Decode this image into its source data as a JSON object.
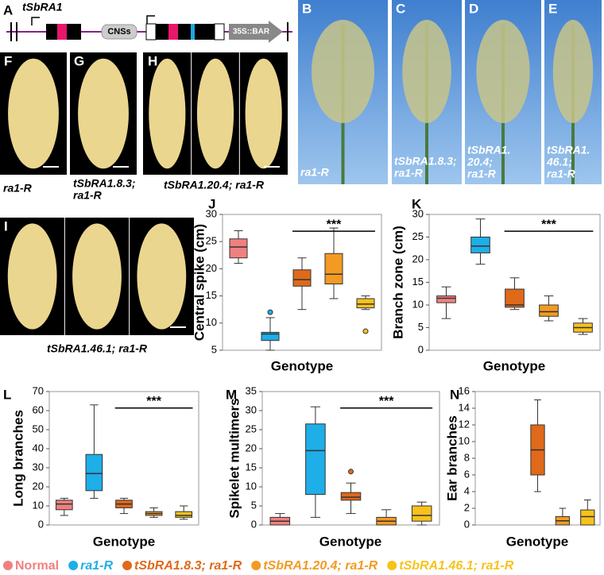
{
  "diagram": {
    "label": "A",
    "gene": "tSbRA1",
    "cns": "CNSs",
    "marker": "35S::BAR"
  },
  "photos": [
    {
      "label": "B",
      "caption": [
        "ra1-R"
      ]
    },
    {
      "label": "C",
      "caption": [
        "tSbRA1.8.3;",
        "ra1-R"
      ]
    },
    {
      "label": "D",
      "caption": [
        "tSbRA1.",
        "20.4;",
        "ra1-R"
      ]
    },
    {
      "label": "E",
      "caption": [
        "tSbRA1.",
        "46.1;",
        "ra1-R"
      ]
    },
    {
      "label": "F",
      "caption": [
        "ra1-R"
      ]
    },
    {
      "label": "G",
      "caption": [
        "tSbRA1.8.3;",
        "ra1-R"
      ]
    },
    {
      "label": "H",
      "caption": [
        "tSbRA1.20.4; ra1-R"
      ]
    },
    {
      "label": "I",
      "caption": [
        "tSbRA1.46.1; ra1-R"
      ]
    }
  ],
  "legend": [
    {
      "name": "Normal",
      "color": "#f08080"
    },
    {
      "name": "ra1-R",
      "color": "#1eaee8"
    },
    {
      "name": "tSbRA1.8.3; ra1-R",
      "color": "#e0691a"
    },
    {
      "name": "tSbRA1.20.4; ra1-R",
      "color": "#f39a22"
    },
    {
      "name": "tSbRA1.46.1; ra1-R",
      "color": "#f8c21c"
    }
  ],
  "chart_data": [
    {
      "type": "box",
      "label": "J",
      "y_label": "Central spike (cm)",
      "x_label": "Genotype",
      "ylim": [
        5,
        30
      ],
      "yticks": [
        5,
        10,
        15,
        20,
        25,
        30
      ],
      "significance": "***",
      "boxes": [
        {
          "min": 21,
          "q1": 22,
          "median": 24,
          "q3": 25.5,
          "max": 27,
          "outliers": []
        },
        {
          "min": 5,
          "q1": 6.8,
          "median": 8,
          "q3": 8.3,
          "max": 11,
          "outliers": [
            12
          ]
        },
        {
          "min": 12.5,
          "q1": 16.8,
          "median": 18,
          "q3": 19.8,
          "max": 22,
          "outliers": []
        },
        {
          "min": 14.5,
          "q1": 17.2,
          "median": 19,
          "q3": 22.8,
          "max": 27.5,
          "outliers": []
        },
        {
          "min": 12.5,
          "q1": 12.8,
          "median": 13.5,
          "q3": 14.5,
          "max": 15,
          "outliers": [
            8.5
          ]
        }
      ]
    },
    {
      "type": "box",
      "label": "K",
      "y_label": "Branch zone (cm)",
      "x_label": "Genotype",
      "ylim": [
        0,
        30
      ],
      "yticks": [
        0,
        5,
        10,
        15,
        20,
        25,
        30
      ],
      "significance": "***",
      "boxes": [
        {
          "min": 7,
          "q1": 10.5,
          "median": 11.5,
          "q3": 12,
          "max": 14,
          "outliers": []
        },
        {
          "min": 19,
          "q1": 21.5,
          "median": 23,
          "q3": 25,
          "max": 29,
          "outliers": []
        },
        {
          "min": 9,
          "q1": 9.5,
          "median": 10,
          "q3": 13.5,
          "max": 16,
          "outliers": []
        },
        {
          "min": 6.5,
          "q1": 7.5,
          "median": 8.5,
          "q3": 10,
          "max": 12,
          "outliers": []
        },
        {
          "min": 3.5,
          "q1": 4,
          "median": 5,
          "q3": 6,
          "max": 7,
          "outliers": []
        }
      ]
    },
    {
      "type": "box",
      "label": "L",
      "y_label": "Long branches",
      "x_label": "Genotype",
      "ylim": [
        0,
        70
      ],
      "yticks": [
        0,
        10,
        20,
        30,
        40,
        50,
        60,
        70
      ],
      "significance": "***",
      "boxes": [
        {
          "min": 5,
          "q1": 8,
          "median": 11,
          "q3": 13,
          "max": 14,
          "outliers": []
        },
        {
          "min": 14,
          "q1": 18,
          "median": 27,
          "q3": 37,
          "max": 63,
          "outliers": []
        },
        {
          "min": 6,
          "q1": 9,
          "median": 11,
          "q3": 13,
          "max": 14,
          "outliers": []
        },
        {
          "min": 4,
          "q1": 5,
          "median": 6,
          "q3": 7,
          "max": 9,
          "outliers": []
        },
        {
          "min": 3,
          "q1": 4,
          "median": 5,
          "q3": 7,
          "max": 10,
          "outliers": []
        }
      ]
    },
    {
      "type": "box",
      "label": "M",
      "y_label": "Spikelet multimers",
      "x_label": "Genotype",
      "ylim": [
        0,
        35
      ],
      "yticks": [
        0,
        5,
        10,
        15,
        20,
        25,
        30,
        35
      ],
      "significance": "***",
      "boxes": [
        {
          "min": 0,
          "q1": 0,
          "median": 1,
          "q3": 2,
          "max": 3,
          "outliers": []
        },
        {
          "min": 2,
          "q1": 8,
          "median": 19.5,
          "q3": 26.5,
          "max": 31,
          "outliers": []
        },
        {
          "min": 3,
          "q1": 6.5,
          "median": 7.3,
          "q3": 8.5,
          "max": 11,
          "outliers": [
            14
          ]
        },
        {
          "min": 0,
          "q1": 0,
          "median": 1,
          "q3": 2,
          "max": 4,
          "outliers": []
        },
        {
          "min": 0,
          "q1": 1,
          "median": 2.5,
          "q3": 5,
          "max": 6,
          "outliers": []
        }
      ]
    },
    {
      "type": "box",
      "label": "N",
      "y_label": "Ear branches",
      "x_label": "Genotype",
      "ylim": [
        0,
        16
      ],
      "yticks": [
        0,
        2,
        4,
        6,
        8,
        10,
        12,
        14,
        16
      ],
      "boxes": [
        null,
        null,
        {
          "min": 4,
          "q1": 6,
          "median": 9,
          "q3": 12,
          "max": 15,
          "outliers": []
        },
        {
          "min": 0,
          "q1": 0,
          "median": 0.5,
          "q3": 1,
          "max": 2,
          "outliers": []
        },
        {
          "min": 0,
          "q1": 0,
          "median": 1,
          "q3": 1.8,
          "max": 3,
          "outliers": []
        }
      ]
    }
  ]
}
